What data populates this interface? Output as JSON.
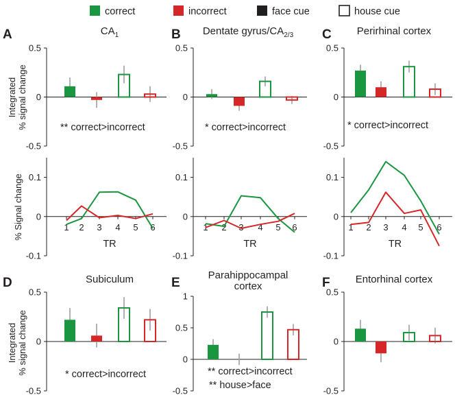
{
  "legend": [
    {
      "label": "correct",
      "style": "filled",
      "color": "#1a9641"
    },
    {
      "label": "incorrect",
      "style": "filled",
      "color": "#d62728"
    },
    {
      "label": "face cue",
      "style": "filled",
      "color": "#231f20"
    },
    {
      "label": "house cue",
      "style": "outline",
      "color": "#231f20"
    }
  ],
  "colors": {
    "correct": "#1a9641",
    "incorrect": "#d62728",
    "errorbar": "#9e9e9e",
    "text": "#231f20"
  },
  "bar_ylabel": [
    "Integrated",
    "% signal change"
  ],
  "line_ylabel": "% Signal change",
  "chart_data": [
    {
      "panel": "A",
      "title": "CA1",
      "title_sub": "1",
      "type": "bar",
      "categories": [
        "correct face cue",
        "incorrect face cue",
        "correct house cue",
        "incorrect house cue"
      ],
      "values": [
        0.11,
        -0.03,
        0.23,
        0.03
      ],
      "errors": [
        0.09,
        0.08,
        0.09,
        0.08
      ],
      "yticks": [
        "0.5",
        "0",
        "-0.5"
      ],
      "ylim": [
        -0.5,
        0.5
      ],
      "annotations": [
        "** correct>incorrect"
      ]
    },
    {
      "panel": "B",
      "title": "Dentate gyrus/CA2/3",
      "title_sub": "2/3",
      "type": "bar",
      "categories": [
        "correct face cue",
        "incorrect face cue",
        "correct house cue",
        "incorrect house cue"
      ],
      "values": [
        0.03,
        -0.09,
        0.16,
        -0.03
      ],
      "errors": [
        0.05,
        0.05,
        0.05,
        0.04
      ],
      "yticks": [
        "0.5",
        "0",
        "-0.5"
      ],
      "ylim": [
        -0.5,
        0.5
      ],
      "annotations": [
        "* correct>incorrect"
      ]
    },
    {
      "panel": "C",
      "title": "Perirhinal cortex",
      "type": "bar",
      "categories": [
        "correct face cue",
        "incorrect face cue",
        "correct house cue",
        "incorrect house cue"
      ],
      "values": [
        0.27,
        0.1,
        0.31,
        0.08
      ],
      "errors": [
        0.06,
        0.06,
        0.06,
        0.06
      ],
      "yticks": [
        "0.5",
        "0",
        "-0.5"
      ],
      "ylim": [
        -0.5,
        0.5
      ],
      "annotations": [
        "* correct>incorrect"
      ]
    },
    {
      "panel": "A-time",
      "type": "line",
      "x": [
        1,
        2,
        3,
        4,
        5,
        6
      ],
      "series": [
        {
          "name": "correct",
          "values": [
            -0.02,
            -0.005,
            0.062,
            0.063,
            0.042,
            -0.03
          ]
        },
        {
          "name": "incorrect",
          "values": [
            -0.01,
            0.027,
            -0.003,
            0.003,
            -0.005,
            0.007
          ]
        }
      ],
      "xlabel": "TR",
      "yticks": [
        "0.1",
        "0",
        "-0.1"
      ],
      "ylim": [
        -0.1,
        0.15
      ]
    },
    {
      "panel": "B-time",
      "type": "line",
      "x": [
        1,
        2,
        3,
        4,
        5,
        6
      ],
      "series": [
        {
          "name": "correct",
          "values": [
            -0.018,
            -0.025,
            0.053,
            0.048,
            -0.005,
            -0.04
          ]
        },
        {
          "name": "incorrect",
          "values": [
            -0.028,
            -0.01,
            -0.03,
            -0.02,
            -0.012,
            0.008
          ]
        }
      ],
      "xlabel": "TR",
      "yticks": [
        "0.1",
        "0",
        "-0.1"
      ],
      "ylim": [
        -0.1,
        0.15
      ]
    },
    {
      "panel": "C-time",
      "type": "line",
      "x": [
        1,
        2,
        3,
        4,
        5,
        6
      ],
      "series": [
        {
          "name": "correct",
          "values": [
            0.01,
            0.068,
            0.14,
            0.105,
            0.04,
            -0.045
          ]
        },
        {
          "name": "incorrect",
          "values": [
            -0.02,
            -0.015,
            0.062,
            0.008,
            0.017,
            -0.075
          ]
        }
      ],
      "xlabel": "TR",
      "yticks": [
        "0.1",
        "0",
        "-0.1"
      ],
      "ylim": [
        -0.1,
        0.15
      ]
    },
    {
      "panel": "D",
      "title": "Subiculum",
      "type": "bar",
      "categories": [
        "correct face cue",
        "incorrect face cue",
        "correct house cue",
        "incorrect house cue"
      ],
      "values": [
        0.22,
        0.06,
        0.34,
        0.22
      ],
      "errors": [
        0.12,
        0.12,
        0.11,
        0.11
      ],
      "yticks": [
        "0.5",
        "0",
        "-0.5"
      ],
      "ylim": [
        -0.5,
        0.5
      ],
      "annotations": [
        "* correct>incorrect"
      ]
    },
    {
      "panel": "E",
      "title": "Parahippocampal cortex",
      "type": "bar",
      "title_lines": [
        "Parahippocampal",
        "cortex"
      ],
      "categories": [
        "correct face cue",
        "incorrect face cue",
        "correct house cue",
        "incorrect house cue"
      ],
      "values": [
        0.23,
        0.0,
        0.75,
        0.47
      ],
      "errors": [
        0.09,
        0.09,
        0.09,
        0.09
      ],
      "yticks": [
        "1",
        "0.5",
        "0",
        "-0.5"
      ],
      "ylim": [
        -0.5,
        1
      ],
      "annotations": [
        "** correct>incorrect",
        "** house>face"
      ]
    },
    {
      "panel": "F",
      "title": "Entorhinal cortex",
      "type": "bar",
      "categories": [
        "correct face cue",
        "incorrect face cue",
        "correct house cue",
        "incorrect house cue"
      ],
      "values": [
        0.13,
        -0.12,
        0.09,
        0.06
      ],
      "errors": [
        0.09,
        0.09,
        0.08,
        0.08
      ],
      "yticks": [
        "0.5",
        "0",
        "-0.5"
      ],
      "ylim": [
        -0.5,
        0.5
      ],
      "annotations": []
    }
  ]
}
